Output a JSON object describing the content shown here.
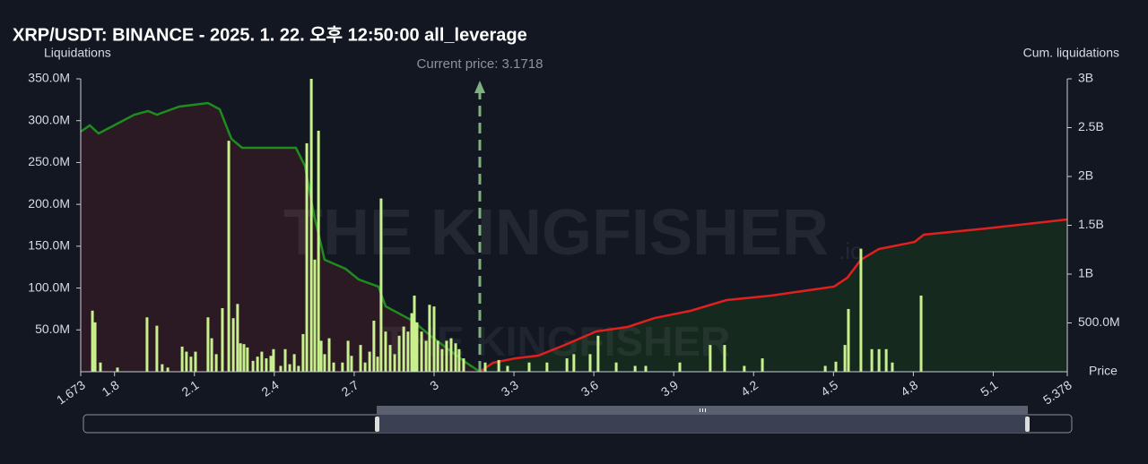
{
  "chart_data": {
    "type": "liquidation-map",
    "title": "XRP/USDT: BINANCE - 2025. 1. 22. 오후 12:50:00 all_leverage",
    "y_label": "Liquidations",
    "y2_label": "Cum. liquidations",
    "x_label": "Price",
    "watermark": "THE KINGFISHER",
    "watermark_suffix": ".io",
    "current_price_label": "Current price: 3.1718",
    "current_price": 3.1718,
    "xlim": [
      1.673,
      5.378
    ],
    "xticks": [
      1.673,
      1.8,
      2.1,
      2.4,
      2.7,
      3,
      3.3,
      3.6,
      3.9,
      4.2,
      4.5,
      4.8,
      5.1,
      5.378
    ],
    "ylim": [
      0,
      350
    ],
    "yticks": [
      {
        "value": 50,
        "label": "50.0M"
      },
      {
        "value": 100,
        "label": "100.0M"
      },
      {
        "value": 150,
        "label": "150.0M"
      },
      {
        "value": 200,
        "label": "200.0M"
      },
      {
        "value": 250,
        "label": "250.0M"
      },
      {
        "value": 300,
        "label": "300.0M"
      },
      {
        "value": 350,
        "label": "350.0M"
      }
    ],
    "y2lim": [
      0,
      3000
    ],
    "y2ticks": [
      {
        "value": 500,
        "label": "500.0M"
      },
      {
        "value": 1000,
        "label": "1B"
      },
      {
        "value": 1500,
        "label": "1.5B"
      },
      {
        "value": 2000,
        "label": "2B"
      },
      {
        "value": 2500,
        "label": "2.5B"
      },
      {
        "value": 3000,
        "label": "3B"
      }
    ],
    "bars": {
      "color": "#c8f08c",
      "x": [
        1.717,
        1.727,
        1.747,
        1.811,
        1.922,
        1.959,
        1.979,
        2.0,
        2.054,
        2.07,
        2.087,
        2.104,
        2.151,
        2.165,
        2.182,
        2.205,
        2.229,
        2.246,
        2.262,
        2.273,
        2.286,
        2.299,
        2.32,
        2.337,
        2.353,
        2.37,
        2.387,
        2.397,
        2.424,
        2.441,
        2.458,
        2.475,
        2.491,
        2.508,
        2.522,
        2.539,
        2.552,
        2.566,
        2.576,
        2.589,
        2.606,
        2.623,
        2.656,
        2.677,
        2.69,
        2.724,
        2.741,
        2.758,
        2.774,
        2.788,
        2.801,
        2.818,
        2.835,
        2.852,
        2.869,
        2.886,
        2.902,
        2.916,
        2.926,
        2.936,
        2.953,
        2.97,
        2.983,
        3.0,
        3.014,
        3.03,
        3.047,
        3.064,
        3.081,
        3.094,
        3.111,
        3.192,
        3.243,
        3.276,
        3.357,
        3.424,
        3.499,
        3.525,
        3.586,
        3.616,
        3.684,
        3.755,
        3.795,
        3.923,
        4.037,
        4.091,
        4.165,
        4.233,
        4.469,
        4.509,
        4.543,
        4.556,
        4.603,
        4.644,
        4.671,
        4.698,
        4.721,
        4.829
      ],
      "values": [
        73,
        59,
        11,
        5,
        65,
        55,
        9,
        5,
        30,
        24,
        18,
        24,
        65,
        40,
        21,
        76,
        276,
        64,
        81,
        34,
        33,
        29,
        13,
        18,
        24,
        16,
        19,
        27,
        7,
        27,
        9,
        21,
        7,
        45,
        273,
        350,
        134,
        288,
        37,
        21,
        40,
        11,
        11,
        37,
        19,
        32,
        11,
        24,
        61,
        18,
        207,
        48,
        32,
        21,
        43,
        54,
        48,
        70,
        91,
        59,
        48,
        37,
        80,
        78,
        37,
        27,
        37,
        40,
        34,
        27,
        16,
        11,
        14,
        7,
        11,
        11,
        16,
        21,
        21,
        43,
        11,
        7,
        7,
        11,
        32,
        32,
        7,
        16,
        7,
        12,
        32,
        75,
        147,
        27,
        27,
        27,
        11,
        91
      ]
    },
    "series": [
      {
        "color": "#1e8c1e",
        "fill": "#2b1a24",
        "axis": "y2",
        "x": [
          1.673,
          1.707,
          1.74,
          1.875,
          1.926,
          1.959,
          2.043,
          2.151,
          2.195,
          2.239,
          2.279,
          2.481,
          2.515,
          2.549,
          2.589,
          2.667,
          2.717,
          2.791,
          2.818,
          2.919,
          2.987,
          3.054,
          3.121,
          3.1718
        ],
        "values": [
          2459,
          2523,
          2440,
          2633,
          2670,
          2633,
          2716,
          2752,
          2688,
          2385,
          2294,
          2294,
          2110,
          1606,
          1147,
          1055,
          945,
          872,
          670,
          523,
          367,
          229,
          92,
          0
        ]
      },
      {
        "color": "#e0201e",
        "fill": "#16291f",
        "axis": "y2",
        "x": [
          3.1718,
          3.222,
          3.306,
          3.391,
          3.492,
          3.609,
          3.727,
          3.828,
          3.963,
          4.098,
          4.266,
          4.502,
          4.552,
          4.603,
          4.671,
          4.805,
          4.839,
          5.075,
          5.378
        ],
        "values": [
          0,
          92,
          138,
          165,
          275,
          413,
          459,
          550,
          624,
          734,
          780,
          872,
          963,
          1147,
          1257,
          1330,
          1404,
          1468,
          1560
        ]
      }
    ]
  }
}
